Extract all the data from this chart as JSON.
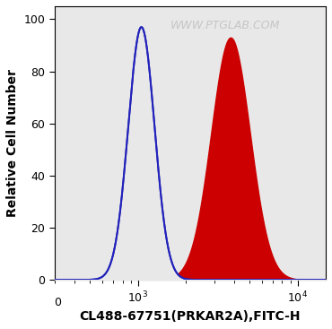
{
  "title": "",
  "xlabel": "CL488-67751(PRKAR2A),FITC-H",
  "ylabel": "Relative Cell Number",
  "xlim": [
    300,
    15000
  ],
  "ylim": [
    0,
    105
  ],
  "yticks": [
    0,
    20,
    40,
    60,
    80,
    100
  ],
  "blue_peak_x": 1050,
  "blue_peak_y": 97,
  "blue_sigma": 0.19,
  "red_peak_x": 3800,
  "red_peak_y": 93,
  "red_sigma": 0.28,
  "blue_color": "#2222bb",
  "red_color": "#cc0000",
  "bg_color": "#ffffff",
  "plot_bg_color": "#e8e8e8",
  "watermark": "WWW.PTGLAB.COM",
  "watermark_color": "#c0c0c0",
  "watermark_fontsize": 9,
  "xlabel_fontsize": 10,
  "ylabel_fontsize": 10,
  "tick_fontsize": 9,
  "figsize": [
    3.7,
    3.67
  ],
  "dpi": 100
}
